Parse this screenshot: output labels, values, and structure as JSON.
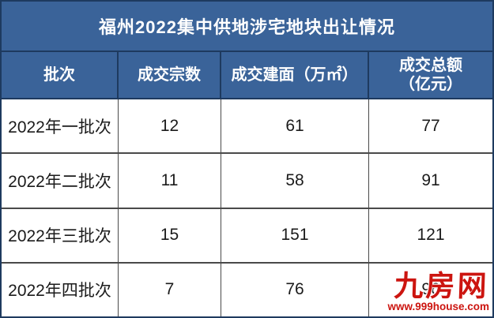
{
  "table": {
    "title": "福州2022集中供地涉宅地块出让情况",
    "columns": [
      {
        "label": "批次"
      },
      {
        "label": "成交宗数"
      },
      {
        "label": "成交建面（万㎡）"
      },
      {
        "label": "成交总额",
        "label2": "（亿元）"
      }
    ],
    "rows": [
      {
        "batch": "2022年一批次",
        "deals": "12",
        "area": "61",
        "total": "77"
      },
      {
        "batch": "2022年二批次",
        "deals": "11",
        "area": "58",
        "total": "91"
      },
      {
        "batch": "2022年三批次",
        "deals": "15",
        "area": "151",
        "total": "121"
      },
      {
        "batch": "2022年四批次",
        "deals": "7",
        "area": "76",
        "total": "96"
      }
    ]
  },
  "watermark": {
    "logo": "九房网",
    "url": "www.999house.com"
  },
  "colors": {
    "header_blue": "#3a6399",
    "navy_line": "#1e3a5f",
    "grid_line": "#4a4a4a",
    "body_text": "#1b1b1b",
    "watermark_red": "#cc1510"
  },
  "chart_data": {
    "type": "table",
    "title": "福州2022集中供地涉宅地块出让情况",
    "columns": [
      "批次",
      "成交宗数",
      "成交建面（万㎡）",
      "成交总额（亿元）"
    ],
    "rows": [
      [
        "2022年一批次",
        12,
        61,
        77
      ],
      [
        "2022年二批次",
        11,
        58,
        91
      ],
      [
        "2022年三批次",
        15,
        151,
        121
      ],
      [
        "2022年四批次",
        7,
        76,
        96
      ]
    ]
  }
}
